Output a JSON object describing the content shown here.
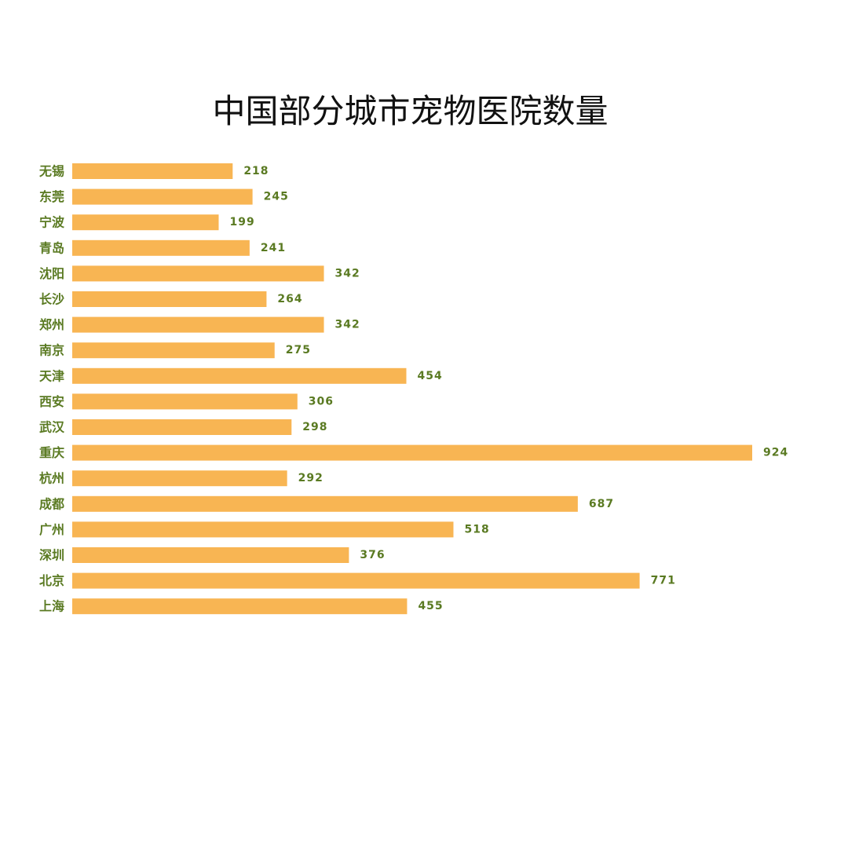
{
  "chart_data": {
    "type": "bar",
    "orientation": "horizontal",
    "title": "中国部分城市宠物医院数量",
    "xlabel": "",
    "ylabel": "",
    "categories": [
      "无锡",
      "东莞",
      "宁波",
      "青岛",
      "沈阳",
      "长沙",
      "郑州",
      "南京",
      "天津",
      "西安",
      "武汉",
      "重庆",
      "杭州",
      "成都",
      "广州",
      "深圳",
      "北京",
      "上海"
    ],
    "values": [
      218,
      245,
      199,
      241,
      342,
      264,
      342,
      275,
      454,
      306,
      298,
      924,
      292,
      687,
      518,
      376,
      771,
      455
    ],
    "xlim": [
      0,
      924
    ],
    "grid": false,
    "legend": "none",
    "bar_color": "#F8B553",
    "label_color": "#5A7A22"
  }
}
